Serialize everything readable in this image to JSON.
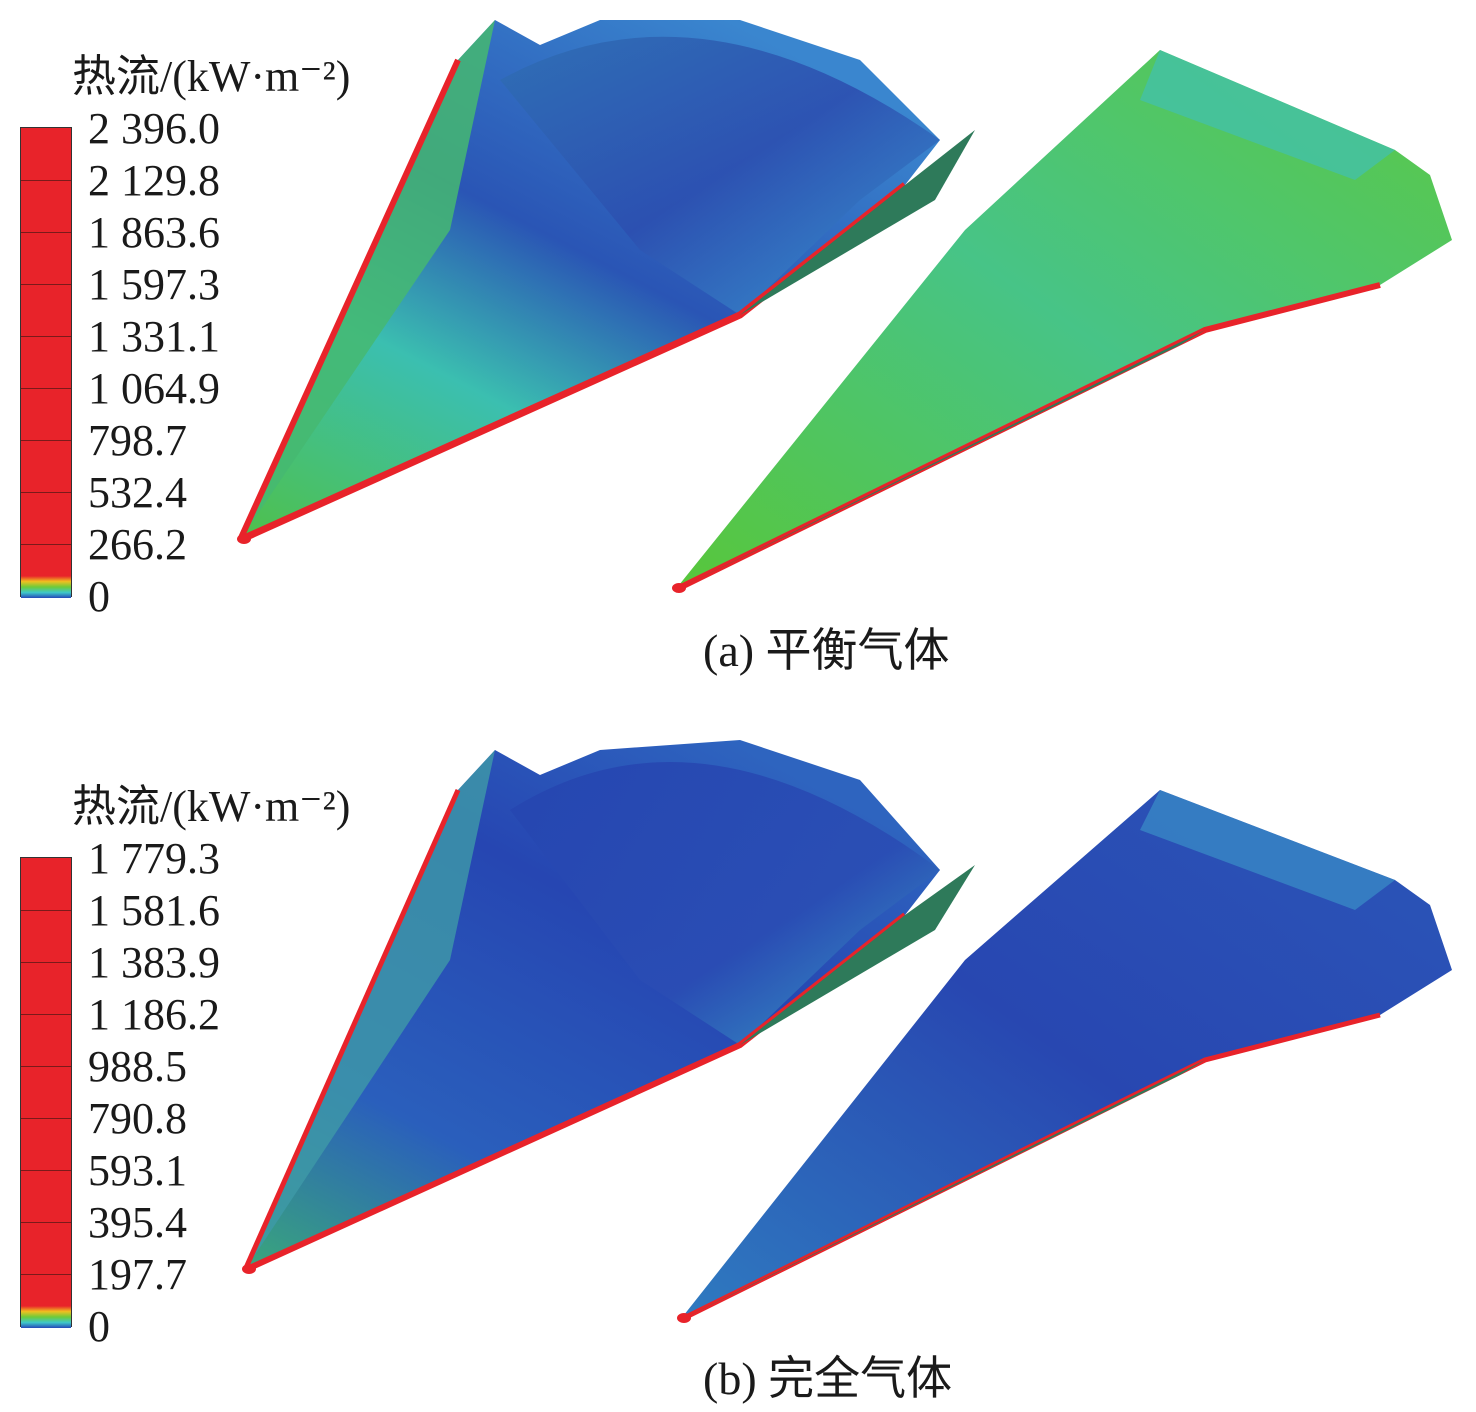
{
  "panels": [
    {
      "legend": {
        "title": "热流/(kW·m⁻²)",
        "ticks": [
          "2 396.0",
          "2 129.8",
          "1 863.6",
          "1 597.3",
          "1 331.1",
          "1 064.9",
          "798.7",
          "532.4",
          "266.2",
          "0"
        ]
      },
      "caption": "(a) 平衡气体"
    },
    {
      "legend": {
        "title": "热流/(kW·m⁻²)",
        "ticks": [
          "1 779.3",
          "1 581.6",
          "1 383.9",
          "1 186.2",
          "988.5",
          "790.8",
          "593.1",
          "395.4",
          "197.7",
          "0"
        ]
      },
      "caption": "(b) 完全气体"
    }
  ],
  "colors": {
    "high": "#e8232a",
    "green": "#5cc43a",
    "cyan": "#3fc9c9",
    "blue": "#2648b8"
  }
}
